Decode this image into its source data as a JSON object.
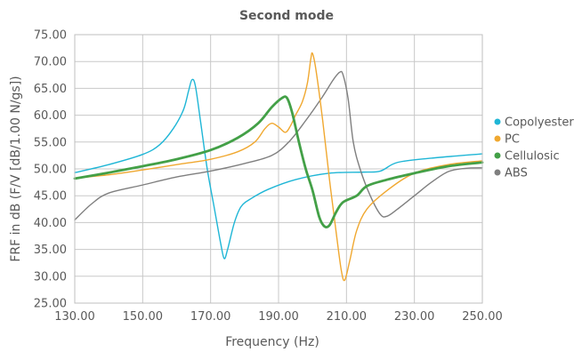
{
  "chart_data": {
    "type": "line",
    "title": "Second mode",
    "xlabel": "Frequency (Hz)",
    "ylabel": "FRF in dB (F/V [dB/1.00 N/gs])",
    "xlim": [
      130,
      250
    ],
    "ylim": [
      25,
      75
    ],
    "x_ticks": [
      "130.00",
      "150.00",
      "170.00",
      "190.00",
      "210.00",
      "230.00",
      "250.00"
    ],
    "y_ticks": [
      "25.00",
      "30.00",
      "35.00",
      "40.00",
      "45.00",
      "50.00",
      "55.00",
      "60.00",
      "65.00",
      "70.00",
      "75.00"
    ],
    "grid": true,
    "legend_position": "right",
    "series": [
      {
        "name": "Copolyester",
        "color": "#1fb6d6",
        "width": 1.4,
        "points": [
          [
            130,
            49.3
          ],
          [
            140,
            50.8
          ],
          [
            150,
            52.7
          ],
          [
            155,
            54.5
          ],
          [
            159,
            57.5
          ],
          [
            162,
            61
          ],
          [
            163.5,
            64.5
          ],
          [
            164.5,
            66.6
          ],
          [
            165.5,
            65.5
          ],
          [
            167,
            59
          ],
          [
            169,
            50
          ],
          [
            171,
            43
          ],
          [
            173,
            36
          ],
          [
            174,
            33.3
          ],
          [
            175,
            35
          ],
          [
            177,
            40
          ],
          [
            179,
            43
          ],
          [
            182,
            44.5
          ],
          [
            187,
            46.2
          ],
          [
            195,
            48
          ],
          [
            205,
            49.2
          ],
          [
            215,
            49.4
          ],
          [
            220,
            49.6
          ],
          [
            225,
            51.2
          ],
          [
            235,
            52
          ],
          [
            250,
            52.8
          ]
        ]
      },
      {
        "name": "PC",
        "color": "#f0a830",
        "width": 1.4,
        "points": [
          [
            130,
            48.3
          ],
          [
            140,
            48.9
          ],
          [
            150,
            49.8
          ],
          [
            160,
            50.8
          ],
          [
            170,
            51.8
          ],
          [
            178,
            53.2
          ],
          [
            183,
            55
          ],
          [
            186,
            57.5
          ],
          [
            188,
            58.5
          ],
          [
            190,
            57.8
          ],
          [
            192,
            56.8
          ],
          [
            193.5,
            58
          ],
          [
            195,
            60
          ],
          [
            197,
            62.5
          ],
          [
            198.5,
            66
          ],
          [
            199.5,
            70.5
          ],
          [
            200,
            71.5
          ],
          [
            201,
            68.5
          ],
          [
            203,
            59
          ],
          [
            205,
            48
          ],
          [
            207,
            38
          ],
          [
            208.5,
            31
          ],
          [
            209.5,
            29.3
          ],
          [
            211,
            33
          ],
          [
            213,
            38.5
          ],
          [
            216,
            42.5
          ],
          [
            222,
            46
          ],
          [
            230,
            49.2
          ],
          [
            240,
            50.8
          ],
          [
            250,
            51.5
          ]
        ]
      },
      {
        "name": "Cellulosic",
        "color": "#43a047",
        "width": 2.8,
        "points": [
          [
            130,
            48.2
          ],
          [
            140,
            49.3
          ],
          [
            150,
            50.5
          ],
          [
            160,
            51.8
          ],
          [
            170,
            53.5
          ],
          [
            178,
            55.8
          ],
          [
            184,
            58.5
          ],
          [
            188,
            61.5
          ],
          [
            191,
            63.2
          ],
          [
            192.5,
            63.2
          ],
          [
            194,
            60.5
          ],
          [
            196,
            55
          ],
          [
            198,
            50
          ],
          [
            200,
            46
          ],
          [
            202,
            41
          ],
          [
            203.5,
            39.3
          ],
          [
            205,
            39.5
          ],
          [
            207,
            42
          ],
          [
            209,
            43.8
          ],
          [
            213,
            45
          ],
          [
            216,
            46.8
          ],
          [
            222,
            48
          ],
          [
            230,
            49.2
          ],
          [
            240,
            50.5
          ],
          [
            250,
            51.2
          ]
        ]
      },
      {
        "name": "ABS",
        "color": "#7f7f7f",
        "width": 1.4,
        "points": [
          [
            130,
            40.5
          ],
          [
            135,
            43.5
          ],
          [
            140,
            45.5
          ],
          [
            150,
            47
          ],
          [
            160,
            48.5
          ],
          [
            170,
            49.6
          ],
          [
            180,
            51
          ],
          [
            188,
            52.5
          ],
          [
            193,
            55
          ],
          [
            198,
            59
          ],
          [
            203,
            63.5
          ],
          [
            206,
            66.5
          ],
          [
            208,
            68
          ],
          [
            209,
            67.5
          ],
          [
            210.5,
            63
          ],
          [
            212,
            55
          ],
          [
            214,
            50
          ],
          [
            217,
            45
          ],
          [
            220,
            41.5
          ],
          [
            222,
            41.2
          ],
          [
            225,
            42.5
          ],
          [
            230,
            45
          ],
          [
            235,
            47.5
          ],
          [
            240,
            49.5
          ],
          [
            245,
            50.1
          ],
          [
            250,
            50.2
          ]
        ]
      }
    ]
  }
}
